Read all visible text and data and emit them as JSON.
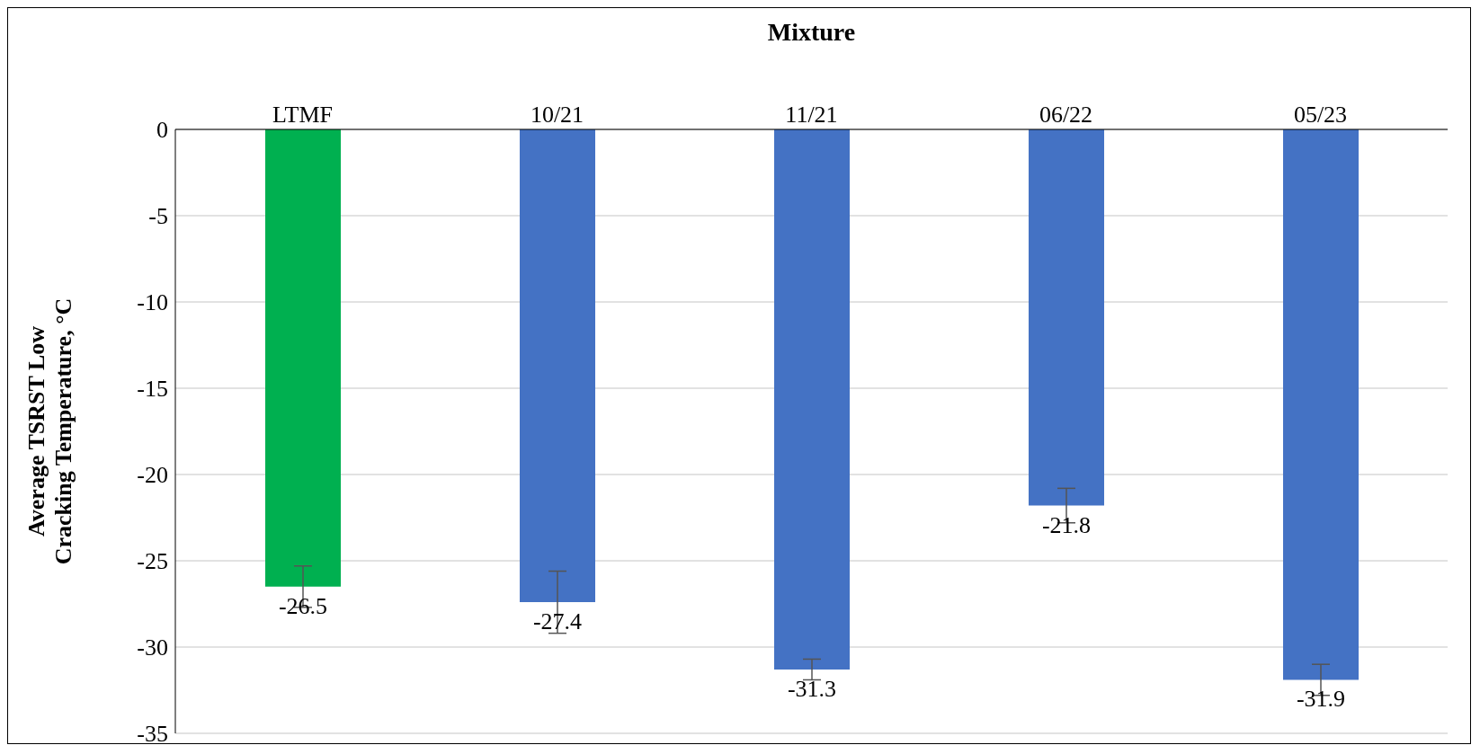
{
  "chart_data": {
    "type": "bar",
    "xlabel": "Mixture",
    "ylabel": "Average TSRST Low Cracking Temperature, °C",
    "categories": [
      "LTMF",
      "10/21",
      "11/21",
      "06/22",
      "05/23"
    ],
    "values": [
      -26.5,
      -27.4,
      -31.3,
      -21.8,
      -31.9
    ],
    "colors": [
      "#00b050",
      "#4472c4",
      "#4472c4",
      "#4472c4",
      "#4472c4"
    ],
    "errors": [
      1.2,
      1.8,
      0.6,
      1.0,
      0.9
    ],
    "ylim": [
      -35,
      0
    ],
    "yticks": [
      -35,
      -30,
      -25,
      -20,
      -15,
      -10,
      -5,
      0
    ],
    "grid": "y",
    "data_labels": true,
    "legend": false
  }
}
